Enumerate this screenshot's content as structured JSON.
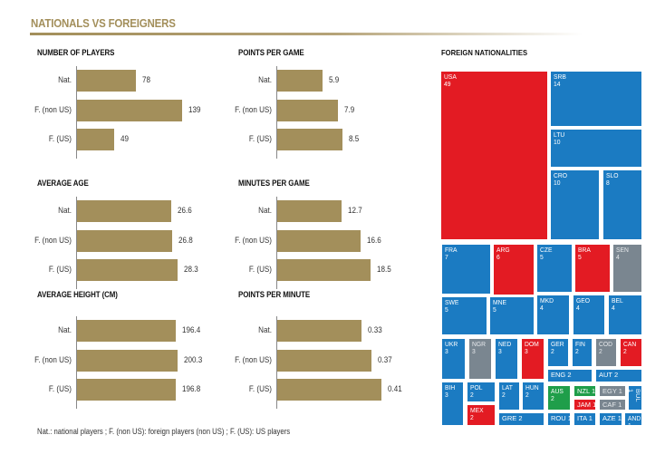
{
  "header": {
    "title": "NATIONALS VS FOREIGNERS"
  },
  "colors": {
    "bar": "#a38f5b",
    "usa_like_red": "#e31b23",
    "europe_blue": "#1b7bc2",
    "africa_grey": "#7a8690",
    "oceania_green": "#1f9e4a"
  },
  "footnote": "Nat.: national players ; F. (non US): foreign players (non US) ; F. (US): US players",
  "chart_data": [
    {
      "type": "bar",
      "title": "NUMBER OF PLAYERS",
      "categories": [
        "Nat.",
        "F. (non US)",
        "F. (US)"
      ],
      "values": [
        78,
        139,
        49
      ],
      "labels": [
        "78",
        "139",
        "49"
      ],
      "xlim": [
        0,
        139
      ]
    },
    {
      "type": "bar",
      "title": "POINTS PER GAME",
      "categories": [
        "Nat.",
        "F. (non US)",
        "F. (US)"
      ],
      "values": [
        5.9,
        7.9,
        8.5
      ],
      "labels": [
        "5.9",
        "7.9",
        "8.5"
      ],
      "xlim": [
        0,
        8.5
      ]
    },
    {
      "type": "bar",
      "title": "AVERAGE AGE",
      "categories": [
        "Nat.",
        "F. (non US)",
        "F. (US)"
      ],
      "values": [
        26.6,
        26.8,
        28.3
      ],
      "labels": [
        "26.6",
        "26.8",
        "28.3"
      ],
      "xlim": [
        0,
        28.3
      ]
    },
    {
      "type": "bar",
      "title": "MINUTES PER GAME",
      "categories": [
        "Nat.",
        "F. (non US)",
        "F. (US)"
      ],
      "values": [
        12.7,
        16.6,
        18.5
      ],
      "labels": [
        "12.7",
        "16.6",
        "18.5"
      ],
      "xlim": [
        0,
        18.5
      ]
    },
    {
      "type": "bar",
      "title": "AVERAGE HEIGHT (CM)",
      "categories": [
        "Nat.",
        "F. (non US)",
        "F. (US)"
      ],
      "values": [
        196.4,
        200.3,
        196.8
      ],
      "labels": [
        "196.4",
        "200.3",
        "196.8"
      ],
      "xlim": [
        0,
        200.3
      ]
    },
    {
      "type": "bar",
      "title": "POINTS PER MINUTE",
      "categories": [
        "Nat.",
        "F. (non US)",
        "F. (US)"
      ],
      "values": [
        0.33,
        0.37,
        0.41
      ],
      "labels": [
        "0.33",
        "0.37",
        "0.41"
      ],
      "xlim": [
        0,
        0.41
      ]
    },
    {
      "type": "treemap",
      "title": "FOREIGN NATIONALITIES",
      "items": [
        {
          "code": "USA",
          "value": 49,
          "group": "americas"
        },
        {
          "code": "SRB",
          "value": 14,
          "group": "europe"
        },
        {
          "code": "LTU",
          "value": 10,
          "group": "europe"
        },
        {
          "code": "CRO",
          "value": 10,
          "group": "europe"
        },
        {
          "code": "SLO",
          "value": 8,
          "group": "europe"
        },
        {
          "code": "FRA",
          "value": 7,
          "group": "europe"
        },
        {
          "code": "ARG",
          "value": 6,
          "group": "americas"
        },
        {
          "code": "CZE",
          "value": 5,
          "group": "europe"
        },
        {
          "code": "BRA",
          "value": 5,
          "group": "americas"
        },
        {
          "code": "SEN",
          "value": 4,
          "group": "africa"
        },
        {
          "code": "SWE",
          "value": 5,
          "group": "europe"
        },
        {
          "code": "MNE",
          "value": 5,
          "group": "europe"
        },
        {
          "code": "MKD",
          "value": 4,
          "group": "europe"
        },
        {
          "code": "GEO",
          "value": 4,
          "group": "europe"
        },
        {
          "code": "BEL",
          "value": 4,
          "group": "europe"
        },
        {
          "code": "UKR",
          "value": 3,
          "group": "europe"
        },
        {
          "code": "NGR",
          "value": 3,
          "group": "africa"
        },
        {
          "code": "NED",
          "value": 3,
          "group": "europe"
        },
        {
          "code": "DOM",
          "value": 3,
          "group": "americas"
        },
        {
          "code": "GER",
          "value": 2,
          "group": "europe"
        },
        {
          "code": "FIN",
          "value": 2,
          "group": "europe"
        },
        {
          "code": "COD",
          "value": 2,
          "group": "africa"
        },
        {
          "code": "CAN",
          "value": 2,
          "group": "americas"
        },
        {
          "code": "ENG",
          "value": 2,
          "group": "europe"
        },
        {
          "code": "AUT",
          "value": 2,
          "group": "europe"
        },
        {
          "code": "BIH",
          "value": 3,
          "group": "europe"
        },
        {
          "code": "POL",
          "value": 2,
          "group": "europe"
        },
        {
          "code": "MEX",
          "value": 2,
          "group": "americas"
        },
        {
          "code": "LAT",
          "value": 2,
          "group": "europe"
        },
        {
          "code": "HUN",
          "value": 2,
          "group": "europe"
        },
        {
          "code": "GRE",
          "value": 2,
          "group": "europe"
        },
        {
          "code": "AUS",
          "value": 2,
          "group": "oceania"
        },
        {
          "code": "ROU",
          "value": 1,
          "group": "europe"
        },
        {
          "code": "NZL",
          "value": 1,
          "group": "oceania"
        },
        {
          "code": "JAM",
          "value": 1,
          "group": "americas"
        },
        {
          "code": "ITA",
          "value": 1,
          "group": "europe"
        },
        {
          "code": "EGY",
          "value": 1,
          "group": "africa"
        },
        {
          "code": "CAF",
          "value": 1,
          "group": "africa"
        },
        {
          "code": "BUL",
          "value": 1,
          "group": "europe"
        },
        {
          "code": "AZE",
          "value": 1,
          "group": "europe"
        },
        {
          "code": "AND",
          "value": 1,
          "group": "europe"
        }
      ]
    }
  ]
}
